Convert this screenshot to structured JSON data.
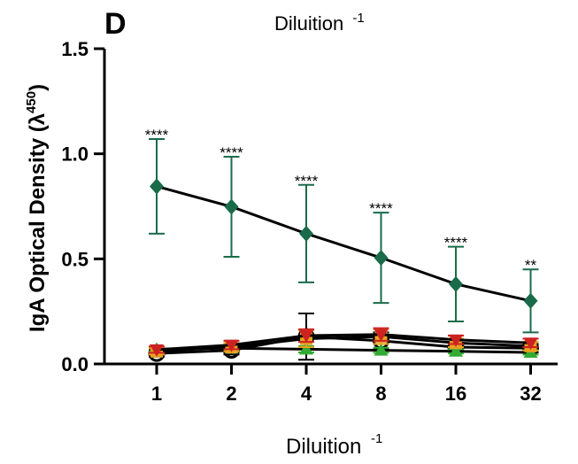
{
  "panel_label": "D",
  "chart_data": {
    "type": "line",
    "title": "Diluition",
    "title_superscript": "-1",
    "xlabel": "Diluition",
    "xlabel_superscript": "-1",
    "ylabel": "IgA Optical Density (",
    "ylabel_symbol": "λ",
    "ylabel_superscript": "450",
    "ylabel_end": ")",
    "categories": [
      "1",
      "2",
      "4",
      "8",
      "16",
      "32"
    ],
    "ylim": [
      0,
      1.5
    ],
    "yticks": [
      "0.0",
      "0.5",
      "1.0",
      "1.5"
    ],
    "ytick_values": [
      0,
      0.5,
      1.0,
      1.5
    ],
    "grid": false,
    "series": [
      {
        "marker": "diamond",
        "color": "#1a6b4a",
        "error_color": "#1a6b4a",
        "values": [
          0.845,
          0.748,
          0.62,
          0.505,
          0.38,
          0.3
        ],
        "errors": [
          0.225,
          0.238,
          0.232,
          0.215,
          0.178,
          0.15
        ],
        "significance": [
          "****",
          "****",
          "****",
          "****",
          "****",
          "**"
        ]
      },
      {
        "marker": "triangle-down",
        "color": "#cc2222",
        "error_color": "#cc2222",
        "values": [
          0.068,
          0.09,
          0.135,
          0.14,
          0.115,
          0.1
        ],
        "errors": [
          0.015,
          0.02,
          0.03,
          0.03,
          0.02,
          0.02
        ]
      },
      {
        "marker": "square",
        "color": "#e8a020",
        "error_color": "#e8a020",
        "values": [
          0.06,
          0.08,
          0.12,
          0.13,
          0.1,
          0.085
        ],
        "errors": [
          0.015,
          0.02,
          0.04,
          0.035,
          0.02,
          0.02
        ]
      },
      {
        "marker": "triangle-up",
        "color": "#33aa33",
        "error_color": "#33aa33",
        "values": [
          0.07,
          0.075,
          0.07,
          0.065,
          0.06,
          0.055
        ],
        "errors": [
          0.01,
          0.01,
          0.015,
          0.012,
          0.01,
          0.01
        ]
      },
      {
        "marker": "circle-open",
        "color": "#000000",
        "error_color": "#000000",
        "values": [
          0.05,
          0.065,
          0.13,
          0.11,
          0.08,
          0.075
        ],
        "errors": [
          0.015,
          0.02,
          0.11,
          0.04,
          0.02,
          0.02
        ]
      }
    ]
  }
}
